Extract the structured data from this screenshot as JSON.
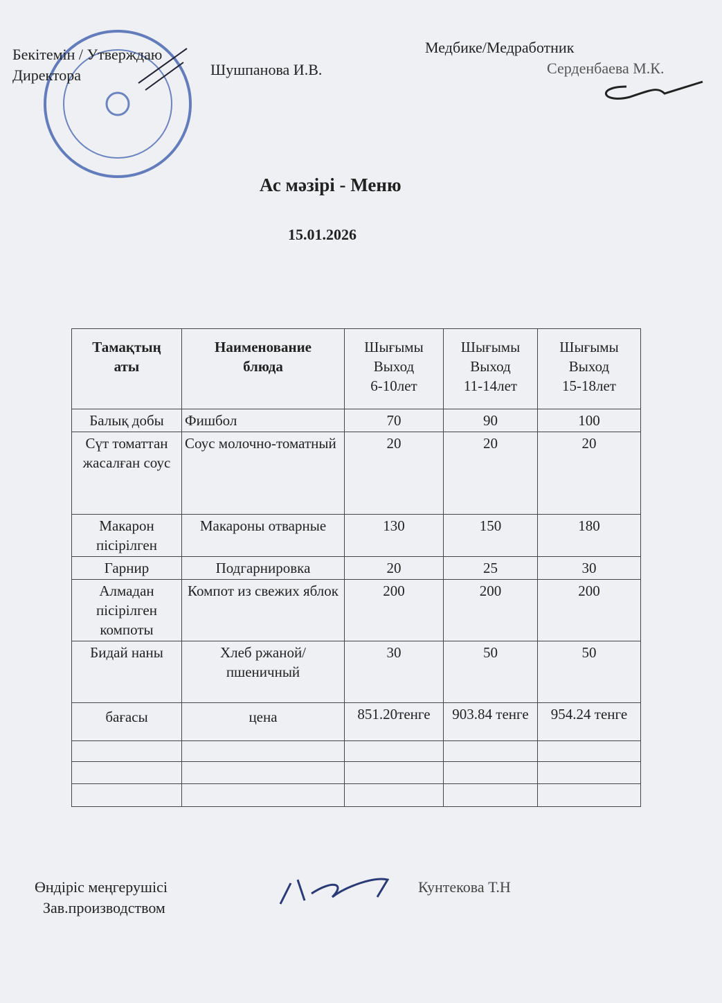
{
  "header": {
    "approve": "Бекітемін / Утверждаю",
    "director": "Директора",
    "director_name": "Шушпанова И.В.",
    "medic": "Медбике/Медработник",
    "medic_name": "Серденбаева М.К."
  },
  "title": "Ас мәзірі  - Меню",
  "date": "15.01.2026",
  "table": {
    "columns": [
      [
        "Тамақтың",
        "аты"
      ],
      [
        "Наименование",
        "блюда"
      ],
      [
        "Шығымы",
        "Выход",
        "6-10лет"
      ],
      [
        "Шығымы",
        "Выход",
        "11-14лет"
      ],
      [
        "Шығымы",
        "Выход",
        "15-18лет"
      ]
    ],
    "rows": [
      [
        "Балық добы",
        "Фишбол",
        70,
        90,
        100
      ],
      [
        "Сүт томаттан жасалған соус",
        "Соус молочно-томатный",
        20,
        20,
        20
      ],
      [
        "Макарон пісірілген",
        "Макароны отварные",
        130,
        150,
        180
      ],
      [
        "Гарнир",
        "Подгарнировка",
        20,
        25,
        30
      ],
      [
        "Алмадан пісірілген компоты",
        "Компот из свежих яблок",
        200,
        200,
        200
      ],
      [
        "Бидай наны",
        "Хлеб ржаной/пшеничный",
        30,
        50,
        50
      ],
      [
        "бағасы",
        "цена",
        "851.20тенге",
        "903.84 тенге",
        "954.24 тенге"
      ]
    ]
  },
  "footer": {
    "role_kz": "Өндіріс  меңгерушісі",
    "role_ru": "Зав.производством",
    "name": "Кунтекова Т.Н"
  }
}
